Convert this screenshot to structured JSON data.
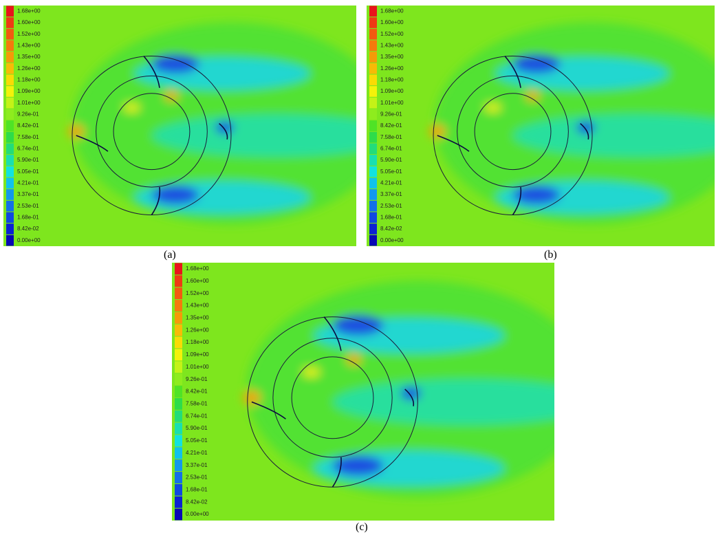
{
  "panels": [
    {
      "caption": "(a)",
      "colorbar_labels": [
        "1.68e+00",
        "1.60e+00",
        "1.52e+00",
        "1.43e+00",
        "1.35e+00",
        "1.26e+00",
        "1.18e+00",
        "1.09e+00",
        "1.01e+00",
        "9.26e-01",
        "8.42e-01",
        "7.58e-01",
        "6.74e-01",
        "5.90e-01",
        "5.05e-01",
        "4.21e-01",
        "3.37e-01",
        "2.53e-01",
        "1.68e-01",
        "8.42e-02",
        "0.00e+00"
      ]
    },
    {
      "caption": "(b)",
      "colorbar_labels": [
        "1.68e+00",
        "1.60e+00",
        "1.52e+00",
        "1.43e+00",
        "1.35e+00",
        "1.26e+00",
        "1.18e+00",
        "1.09e+00",
        "1.01e+00",
        "9.26e-01",
        "8.42e-01",
        "7.58e-01",
        "6.74e-01",
        "5.90e-01",
        "5.05e-01",
        "4.21e-01",
        "3.37e-01",
        "2.53e-01",
        "1.68e-01",
        "8.42e-02",
        "0.00e+00"
      ]
    },
    {
      "caption": "(c)",
      "colorbar_labels": [
        "1.68e+00",
        "1.60e+00",
        "1.52e+00",
        "1.43e+00",
        "1.35e+00",
        "1.26e+00",
        "1.18e+00",
        "1.09e+00",
        "1.01e+00",
        "9.26e-01",
        "8.42e-01",
        "7.58e-01",
        "6.74e-01",
        "5.90e-01",
        "5.05e-01",
        "4.21e-01",
        "3.37e-01",
        "2.53e-01",
        "1.68e-01",
        "8.42e-02",
        "0.00e+00"
      ]
    }
  ],
  "colorbar_colors": [
    "#e8141b",
    "#ee3a14",
    "#f25a10",
    "#f47a0c",
    "#f59a08",
    "#f7bb06",
    "#f9db04",
    "#f4f20a",
    "#c4f217",
    "#8eec1e",
    "#4fe326",
    "#2edc4a",
    "#23dc7a",
    "#1adfb0",
    "#12e2e0",
    "#11c2ec",
    "#1398ec",
    "#1470e8",
    "#1048e0",
    "#0b22d2",
    "#0808b4"
  ]
}
